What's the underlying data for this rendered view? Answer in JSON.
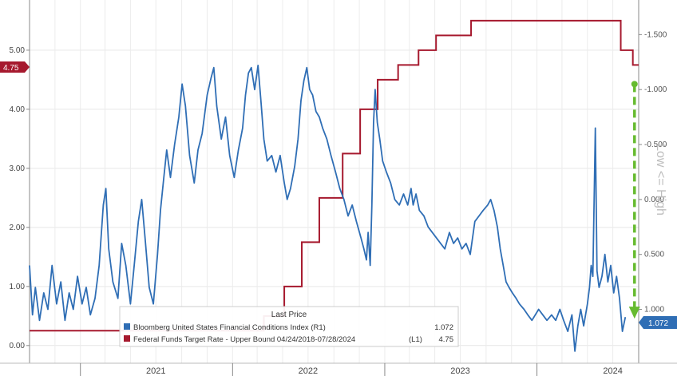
{
  "chart_data": {
    "type": "line",
    "left_axis": {
      "ticks": [
        "0.00",
        "1.00",
        "2.00",
        "3.00",
        "4.00",
        "5.00"
      ],
      "range": [
        -0.3,
        5.85
      ]
    },
    "right_axis": {
      "ticks": [
        "1.000",
        "0.500",
        "0.000",
        "-0.500",
        "-1.000",
        "-1.500"
      ],
      "inverted": true,
      "title": "Low <= High",
      "range": [
        1.49,
        -1.815
      ]
    },
    "x_axis": {
      "years": [
        "2021",
        "2022",
        "2023",
        "2024"
      ],
      "range": [
        "2020-09-01",
        "2024-09-01"
      ]
    },
    "series": [
      {
        "name": "Bloomberg United States Financial Conditions Index (R1)",
        "axis": "right",
        "color": "#2f6eb5",
        "last_price": "1.072",
        "points": [
          [
            "2020-09-01",
            0.6
          ],
          [
            "2020-09-08",
            1.05
          ],
          [
            "2020-09-15",
            0.8
          ],
          [
            "2020-09-25",
            1.1
          ],
          [
            "2020-10-05",
            0.85
          ],
          [
            "2020-10-15",
            1.0
          ],
          [
            "2020-10-25",
            0.6
          ],
          [
            "2020-11-05",
            0.95
          ],
          [
            "2020-11-15",
            0.75
          ],
          [
            "2020-11-25",
            1.1
          ],
          [
            "2020-12-05",
            0.85
          ],
          [
            "2020-12-15",
            1.0
          ],
          [
            "2020-12-25",
            0.7
          ],
          [
            "2021-01-05",
            0.95
          ],
          [
            "2021-01-15",
            0.8
          ],
          [
            "2021-01-25",
            1.05
          ],
          [
            "2021-02-05",
            0.9
          ],
          [
            "2021-02-15",
            0.6
          ],
          [
            "2021-02-25",
            0.05
          ],
          [
            "2021-03-03",
            -0.1
          ],
          [
            "2021-03-10",
            0.45
          ],
          [
            "2021-03-20",
            0.75
          ],
          [
            "2021-04-01",
            0.9
          ],
          [
            "2021-04-10",
            0.4
          ],
          [
            "2021-04-20",
            0.6
          ],
          [
            "2021-05-01",
            0.95
          ],
          [
            "2021-05-10",
            0.6
          ],
          [
            "2021-05-20",
            0.2
          ],
          [
            "2021-05-28",
            0.0
          ],
          [
            "2021-06-05",
            0.35
          ],
          [
            "2021-06-15",
            0.8
          ],
          [
            "2021-06-25",
            0.95
          ],
          [
            "2021-07-05",
            0.5
          ],
          [
            "2021-07-12",
            0.1
          ],
          [
            "2021-07-20",
            -0.2
          ],
          [
            "2021-07-27",
            -0.45
          ],
          [
            "2021-08-05",
            -0.2
          ],
          [
            "2021-08-15",
            -0.5
          ],
          [
            "2021-08-25",
            -0.75
          ],
          [
            "2021-09-02",
            -1.05
          ],
          [
            "2021-09-10",
            -0.85
          ],
          [
            "2021-09-20",
            -0.4
          ],
          [
            "2021-10-01",
            -0.15
          ],
          [
            "2021-10-10",
            -0.45
          ],
          [
            "2021-10-20",
            -0.6
          ],
          [
            "2021-11-01",
            -0.95
          ],
          [
            "2021-11-10",
            -1.1
          ],
          [
            "2021-11-17",
            -1.2
          ],
          [
            "2021-11-24",
            -0.85
          ],
          [
            "2021-12-05",
            -0.55
          ],
          [
            "2021-12-15",
            -0.75
          ],
          [
            "2021-12-25",
            -0.4
          ],
          [
            "2022-01-05",
            -0.2
          ],
          [
            "2022-01-15",
            -0.45
          ],
          [
            "2022-01-25",
            -0.65
          ],
          [
            "2022-02-01",
            -0.95
          ],
          [
            "2022-02-08",
            -1.15
          ],
          [
            "2022-02-15",
            -1.2
          ],
          [
            "2022-02-23",
            -1.0
          ],
          [
            "2022-03-03",
            -1.22
          ],
          [
            "2022-03-10",
            -0.9
          ],
          [
            "2022-03-17",
            -0.55
          ],
          [
            "2022-03-25",
            -0.35
          ],
          [
            "2022-04-05",
            -0.4
          ],
          [
            "2022-04-15",
            -0.25
          ],
          [
            "2022-04-25",
            -0.4
          ],
          [
            "2022-05-05",
            -0.15
          ],
          [
            "2022-05-12",
            0.0
          ],
          [
            "2022-05-20",
            -0.1
          ],
          [
            "2022-05-30",
            -0.3
          ],
          [
            "2022-06-07",
            -0.55
          ],
          [
            "2022-06-14",
            -0.9
          ],
          [
            "2022-06-21",
            -1.08
          ],
          [
            "2022-06-28",
            -1.2
          ],
          [
            "2022-07-05",
            -1.0
          ],
          [
            "2022-07-12",
            -0.95
          ],
          [
            "2022-07-20",
            -0.8
          ],
          [
            "2022-07-28",
            -0.75
          ],
          [
            "2022-08-05",
            -0.65
          ],
          [
            "2022-08-15",
            -0.55
          ],
          [
            "2022-08-25",
            -0.4
          ],
          [
            "2022-09-05",
            -0.25
          ],
          [
            "2022-09-15",
            -0.1
          ],
          [
            "2022-09-25",
            0.0
          ],
          [
            "2022-10-05",
            0.15
          ],
          [
            "2022-10-15",
            0.05
          ],
          [
            "2022-10-25",
            0.2
          ],
          [
            "2022-11-05",
            0.35
          ],
          [
            "2022-11-12",
            0.45
          ],
          [
            "2022-11-18",
            0.55
          ],
          [
            "2022-11-22",
            0.3
          ],
          [
            "2022-11-27",
            0.6
          ],
          [
            "2022-12-01",
            0.05
          ],
          [
            "2022-12-05",
            -0.7
          ],
          [
            "2022-12-09",
            -1.0
          ],
          [
            "2022-12-14",
            -0.7
          ],
          [
            "2022-12-20",
            -0.55
          ],
          [
            "2022-12-27",
            -0.35
          ],
          [
            "2023-01-05",
            -0.25
          ],
          [
            "2023-01-15",
            -0.15
          ],
          [
            "2023-01-25",
            0.0
          ],
          [
            "2023-02-05",
            0.05
          ],
          [
            "2023-02-15",
            -0.05
          ],
          [
            "2023-02-25",
            0.05
          ],
          [
            "2023-03-05",
            -0.1
          ],
          [
            "2023-03-10",
            0.05
          ],
          [
            "2023-03-17",
            -0.05
          ],
          [
            "2023-03-25",
            0.1
          ],
          [
            "2023-04-05",
            0.15
          ],
          [
            "2023-04-15",
            0.25
          ],
          [
            "2023-04-25",
            0.3
          ],
          [
            "2023-05-05",
            0.35
          ],
          [
            "2023-05-15",
            0.4
          ],
          [
            "2023-05-25",
            0.45
          ],
          [
            "2023-06-05",
            0.3
          ],
          [
            "2023-06-15",
            0.4
          ],
          [
            "2023-06-25",
            0.35
          ],
          [
            "2023-07-05",
            0.45
          ],
          [
            "2023-07-15",
            0.4
          ],
          [
            "2023-07-25",
            0.5
          ],
          [
            "2023-08-05",
            0.2
          ],
          [
            "2023-08-15",
            0.15
          ],
          [
            "2023-08-25",
            0.1
          ],
          [
            "2023-09-05",
            0.05
          ],
          [
            "2023-09-12",
            0.0
          ],
          [
            "2023-09-20",
            0.1
          ],
          [
            "2023-09-28",
            0.25
          ],
          [
            "2023-10-05",
            0.45
          ],
          [
            "2023-10-12",
            0.6
          ],
          [
            "2023-10-19",
            0.75
          ],
          [
            "2023-10-26",
            0.8
          ],
          [
            "2023-11-03",
            0.85
          ],
          [
            "2023-11-12",
            0.9
          ],
          [
            "2023-11-20",
            0.95
          ],
          [
            "2023-12-01",
            1.0
          ],
          [
            "2023-12-10",
            1.05
          ],
          [
            "2023-12-20",
            1.1
          ],
          [
            "2024-01-05",
            1.0
          ],
          [
            "2024-01-15",
            1.05
          ],
          [
            "2024-01-25",
            1.1
          ],
          [
            "2024-02-05",
            1.05
          ],
          [
            "2024-02-15",
            1.1
          ],
          [
            "2024-02-25",
            1.0
          ],
          [
            "2024-03-05",
            1.1
          ],
          [
            "2024-03-15",
            1.2
          ],
          [
            "2024-03-25",
            1.05
          ],
          [
            "2024-04-01",
            1.38
          ],
          [
            "2024-04-08",
            1.15
          ],
          [
            "2024-04-15",
            1.0
          ],
          [
            "2024-04-22",
            1.15
          ],
          [
            "2024-05-01",
            0.95
          ],
          [
            "2024-05-06",
            0.8
          ],
          [
            "2024-05-10",
            0.6
          ],
          [
            "2024-05-14",
            0.7
          ],
          [
            "2024-05-20",
            -0.65
          ],
          [
            "2024-05-24",
            0.65
          ],
          [
            "2024-05-29",
            0.8
          ],
          [
            "2024-06-05",
            0.7
          ],
          [
            "2024-06-12",
            0.5
          ],
          [
            "2024-06-19",
            0.75
          ],
          [
            "2024-06-26",
            0.6
          ],
          [
            "2024-07-03",
            0.85
          ],
          [
            "2024-07-10",
            0.7
          ],
          [
            "2024-07-17",
            0.9
          ],
          [
            "2024-07-24",
            1.2
          ],
          [
            "2024-07-31",
            1.07
          ]
        ]
      },
      {
        "name": "Federal Funds Target Rate - Upper Bound 04/24/2018-07/28/2024",
        "axis": "left",
        "color": "#a6192e",
        "last_price": "4.75",
        "steps": [
          [
            "2020-09-01",
            0.25
          ],
          [
            "2022-03-17",
            0.5
          ],
          [
            "2022-05-05",
            1.0
          ],
          [
            "2022-06-16",
            1.75
          ],
          [
            "2022-07-28",
            2.5
          ],
          [
            "2022-09-22",
            3.25
          ],
          [
            "2022-11-03",
            4.0
          ],
          [
            "2022-12-15",
            4.5
          ],
          [
            "2023-02-02",
            4.75
          ],
          [
            "2023-03-23",
            5.0
          ],
          [
            "2023-05-04",
            5.25
          ],
          [
            "2023-07-27",
            5.5
          ],
          [
            "2024-07-20",
            5.0
          ],
          [
            "2024-08-18",
            4.75
          ],
          [
            "2024-09-01",
            4.75
          ]
        ]
      }
    ],
    "annotation": {
      "type": "dashed-arrow",
      "color": "#66bb2f",
      "from_value": -1.05,
      "to_value": 1.07,
      "axis": "right",
      "date": "2024-08-22"
    }
  },
  "badges": {
    "left": "4.75",
    "right": "1.072"
  },
  "legend": {
    "title": "Last Price",
    "items": [
      {
        "color": "#2f6eb5",
        "label": "Bloomberg United States Financial Conditions Index (R1)",
        "value": "1.072"
      },
      {
        "color": "#a6192e",
        "label": "Federal Funds Target Rate - Upper Bound 04/24/2018-07/28/2024",
        "tag": "(L1)",
        "value": "4.75"
      }
    ]
  }
}
